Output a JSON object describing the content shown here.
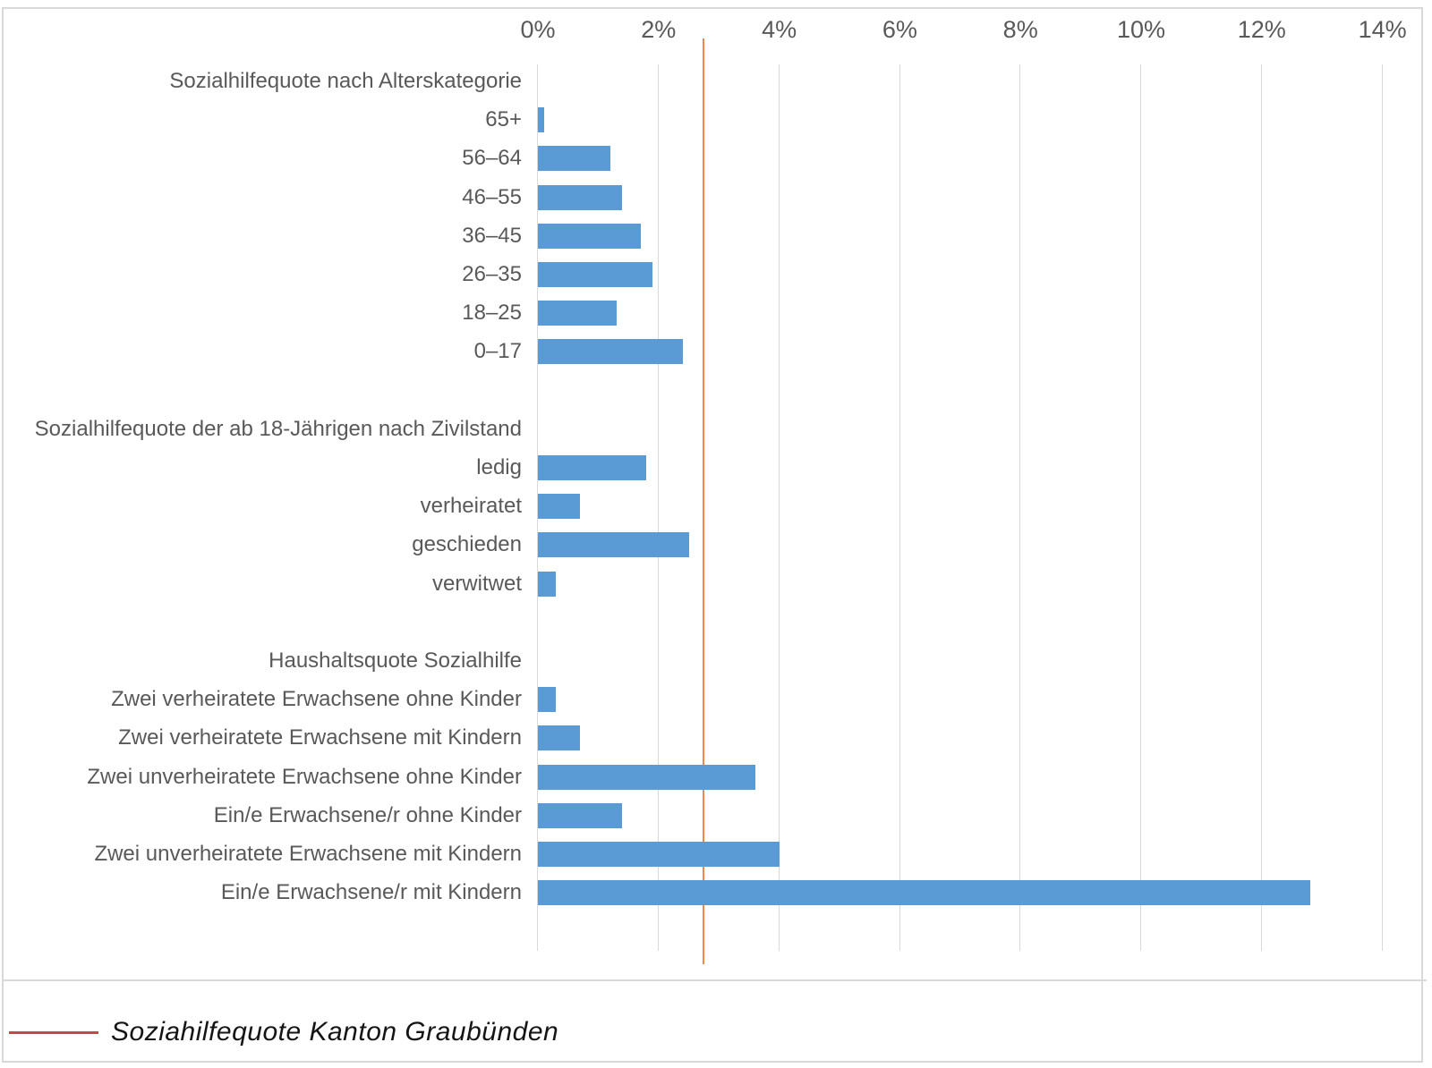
{
  "axis": {
    "tick_labels": [
      "0%",
      "2%",
      "4%",
      "6%",
      "8%",
      "10%",
      "12%",
      "14%"
    ],
    "tick_values": [
      0,
      2,
      4,
      6,
      8,
      10,
      12,
      14
    ]
  },
  "legend": {
    "label": "Soziahilfequote Kanton Graubünden"
  },
  "colors": {
    "bar": "#5b9bd5",
    "grid": "#d9d9d9",
    "text": "#595959",
    "reference_line": "#ed8a47",
    "legend_line": "#be4b48",
    "frame": "#d9d9d9"
  },
  "chart_data": {
    "type": "bar",
    "orientation": "horizontal",
    "unit": "%",
    "xlim": [
      0,
      14
    ],
    "grid": true,
    "legend_position": "bottom-left",
    "reference_line": {
      "value": 2.75,
      "label": "Soziahilfequote Kanton Graubünden"
    },
    "groups": [
      {
        "title": "Sozialhilfequote nach Alterskategorie",
        "categories": [
          "65+",
          "56–64",
          "46–55",
          "36–45",
          "26–35",
          "18–25",
          "0–17"
        ],
        "values": [
          0.1,
          1.2,
          1.4,
          1.7,
          1.9,
          1.3,
          2.4
        ]
      },
      {
        "title": "Sozialhilfequote der ab 18-Jährigen nach Zivilstand",
        "categories": [
          "ledig",
          "verheiratet",
          "geschieden",
          "verwitwet"
        ],
        "values": [
          1.8,
          0.7,
          2.5,
          0.3
        ]
      },
      {
        "title": "Haushaltsquote Sozialhilfe",
        "categories": [
          "Zwei verheiratete Erwachsene ohne Kinder",
          "Zwei verheiratete Erwachsene mit Kindern",
          "Zwei unverheiratete Erwachsene ohne Kinder",
          "Ein/e Erwachsene/r ohne Kinder",
          "Zwei unverheiratete Erwachsene mit Kindern",
          "Ein/e Erwachsene/r mit Kindern"
        ],
        "values": [
          0.3,
          0.7,
          3.6,
          1.4,
          4.0,
          12.8
        ]
      }
    ]
  }
}
